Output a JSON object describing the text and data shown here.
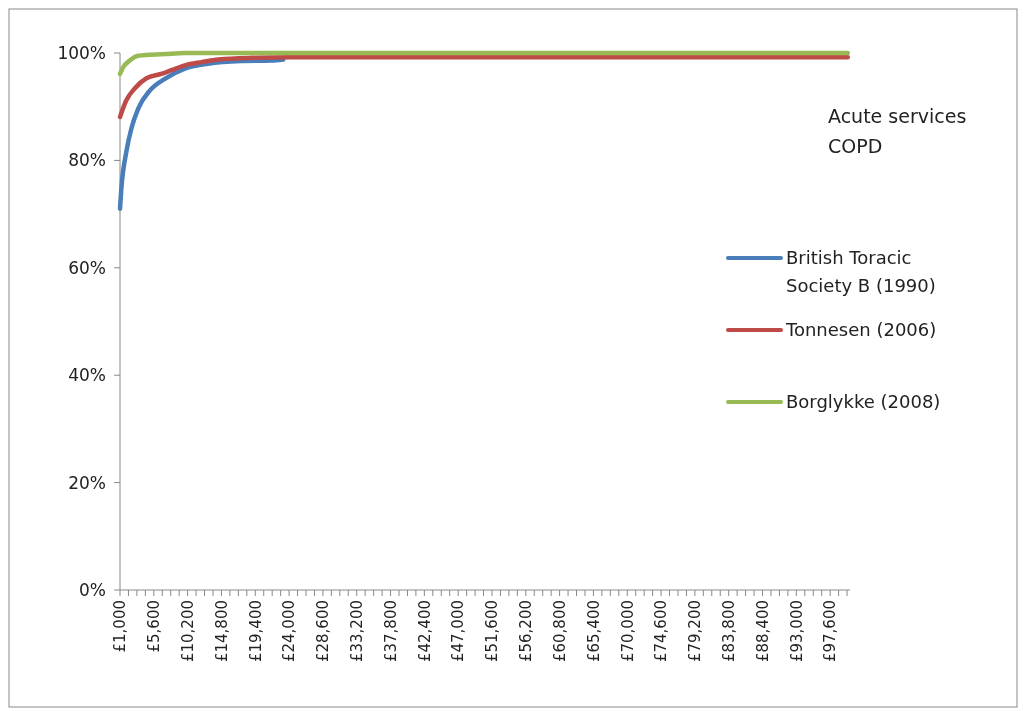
{
  "chart_data": {
    "type": "line",
    "title": "Acute services COPD",
    "legend": "right",
    "grid": false,
    "marker": "none",
    "line_style": "solid",
    "xlim": [
      1000,
      100300
    ],
    "ylim": [
      0,
      100
    ],
    "yticks": [
      {
        "value": 0,
        "label": "0%"
      },
      {
        "value": 20,
        "label": "20%"
      },
      {
        "value": 40,
        "label": "40%"
      },
      {
        "value": 60,
        "label": "60%"
      },
      {
        "value": 80,
        "label": "80%"
      },
      {
        "value": 100,
        "label": "100%"
      }
    ],
    "xticks": [
      {
        "value": 1000,
        "label": "£1,000"
      },
      {
        "value": 2150,
        "label": null
      },
      {
        "value": 3300,
        "label": null
      },
      {
        "value": 4450,
        "label": null
      },
      {
        "value": 5600,
        "label": "£5,600"
      },
      {
        "value": 6750,
        "label": null
      },
      {
        "value": 7900,
        "label": null
      },
      {
        "value": 9050,
        "label": null
      },
      {
        "value": 10200,
        "label": "£10,200"
      },
      {
        "value": 11350,
        "label": null
      },
      {
        "value": 12500,
        "label": null
      },
      {
        "value": 13650,
        "label": null
      },
      {
        "value": 14800,
        "label": "£14,800"
      },
      {
        "value": 15950,
        "label": null
      },
      {
        "value": 17100,
        "label": null
      },
      {
        "value": 18250,
        "label": null
      },
      {
        "value": 19400,
        "label": "£19,400"
      },
      {
        "value": 20550,
        "label": null
      },
      {
        "value": 21700,
        "label": null
      },
      {
        "value": 22850,
        "label": null
      },
      {
        "value": 24000,
        "label": "£24,000"
      },
      {
        "value": 25150,
        "label": null
      },
      {
        "value": 26300,
        "label": null
      },
      {
        "value": 27450,
        "label": null
      },
      {
        "value": 28600,
        "label": "£28,600"
      },
      {
        "value": 29750,
        "label": null
      },
      {
        "value": 30900,
        "label": null
      },
      {
        "value": 32050,
        "label": null
      },
      {
        "value": 33200,
        "label": "£33,200"
      },
      {
        "value": 34350,
        "label": null
      },
      {
        "value": 35500,
        "label": null
      },
      {
        "value": 36650,
        "label": null
      },
      {
        "value": 37800,
        "label": "£37,800"
      },
      {
        "value": 38950,
        "label": null
      },
      {
        "value": 40100,
        "label": null
      },
      {
        "value": 41250,
        "label": null
      },
      {
        "value": 42400,
        "label": "£42,400"
      },
      {
        "value": 43550,
        "label": null
      },
      {
        "value": 44700,
        "label": null
      },
      {
        "value": 45850,
        "label": null
      },
      {
        "value": 47000,
        "label": "£47,000"
      },
      {
        "value": 48150,
        "label": null
      },
      {
        "value": 49300,
        "label": null
      },
      {
        "value": 50450,
        "label": null
      },
      {
        "value": 51600,
        "label": "£51,600"
      },
      {
        "value": 52750,
        "label": null
      },
      {
        "value": 53900,
        "label": null
      },
      {
        "value": 55050,
        "label": null
      },
      {
        "value": 56200,
        "label": "£56,200"
      },
      {
        "value": 57350,
        "label": null
      },
      {
        "value": 58500,
        "label": null
      },
      {
        "value": 59650,
        "label": null
      },
      {
        "value": 60800,
        "label": "£60,800"
      },
      {
        "value": 61950,
        "label": null
      },
      {
        "value": 63100,
        "label": null
      },
      {
        "value": 64250,
        "label": null
      },
      {
        "value": 65400,
        "label": "£65,400"
      },
      {
        "value": 66550,
        "label": null
      },
      {
        "value": 67700,
        "label": null
      },
      {
        "value": 68850,
        "label": null
      },
      {
        "value": 70000,
        "label": "£70,000"
      },
      {
        "value": 71150,
        "label": null
      },
      {
        "value": 72300,
        "label": null
      },
      {
        "value": 73450,
        "label": null
      },
      {
        "value": 74600,
        "label": "£74,600"
      },
      {
        "value": 75750,
        "label": null
      },
      {
        "value": 76900,
        "label": null
      },
      {
        "value": 78050,
        "label": null
      },
      {
        "value": 79200,
        "label": "£79,200"
      },
      {
        "value": 80350,
        "label": null
      },
      {
        "value": 81500,
        "label": null
      },
      {
        "value": 82650,
        "label": null
      },
      {
        "value": 83800,
        "label": "£83,800"
      },
      {
        "value": 84950,
        "label": null
      },
      {
        "value": 86100,
        "label": null
      },
      {
        "value": 87250,
        "label": null
      },
      {
        "value": 88400,
        "label": "£88,400"
      },
      {
        "value": 89550,
        "label": null
      },
      {
        "value": 90700,
        "label": null
      },
      {
        "value": 91850,
        "label": null
      },
      {
        "value": 93000,
        "label": "£93,000"
      },
      {
        "value": 94150,
        "label": null
      },
      {
        "value": 95300,
        "label": null
      },
      {
        "value": 96450,
        "label": null
      },
      {
        "value": 97600,
        "label": "£97,600"
      },
      {
        "value": 98750,
        "label": null
      },
      {
        "value": 99900,
        "label": null
      }
    ],
    "series": [
      {
        "name": "British Toracic Society B (1990)",
        "color": "#4a7ebb",
        "x": [
          1000,
          1180,
          1860,
          2540,
          3460,
          5050,
          7100,
          9830,
          12970,
          17500,
          21600,
          23200
        ],
        "values": [
          71,
          74.7,
          81.6,
          85.9,
          89.6,
          93,
          95.2,
          97.1,
          98,
          98.5,
          98.6,
          98.8
        ]
      },
      {
        "name": "Tonnesen (2006)",
        "color": "#be4b48",
        "x": [
          1000,
          1860,
          3000,
          4600,
          6600,
          8000,
          9830,
          12100,
          14400,
          18900,
          24000,
          100000
        ],
        "values": [
          88.1,
          91.2,
          93.4,
          95.3,
          96.1,
          96.8,
          97.7,
          98.3,
          98.8,
          99.1,
          99.2,
          99.2
        ]
      },
      {
        "name": "Borglykke (2008)",
        "color": "#98b954",
        "x": [
          1000,
          1410,
          2320,
          3460,
          7100,
          9830,
          100000
        ],
        "values": [
          96.1,
          97.3,
          98.6,
          99.5,
          99.8,
          100,
          100
        ]
      }
    ]
  }
}
